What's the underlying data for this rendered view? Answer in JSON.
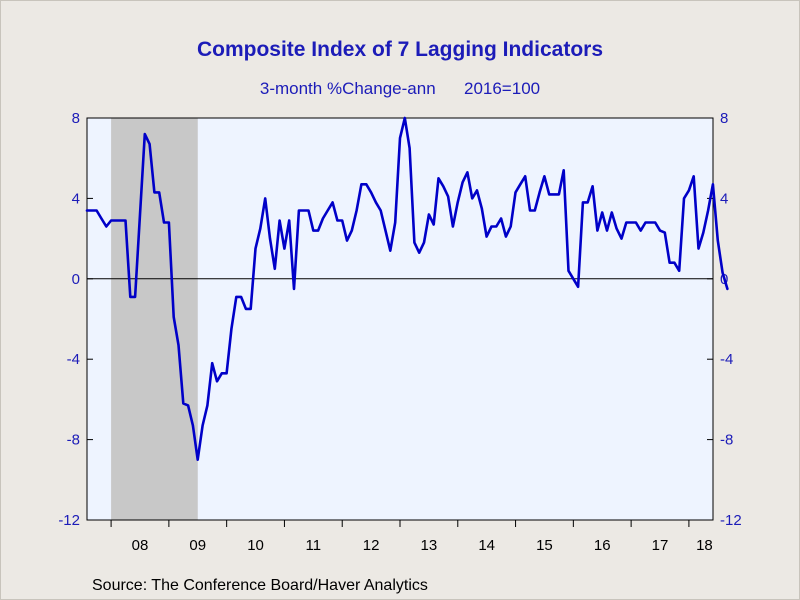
{
  "title": "Composite Index of 7 Lagging Indicators",
  "subtitle": "3-month %Change-ann      2016=100",
  "source": "Source:  The Conference Board/Haver Analytics",
  "colors": {
    "line": "#0000c8",
    "plot_bg": "#eef4ff",
    "recession": "#c8c8c8",
    "text": "#1c1cb8"
  },
  "chart_data": {
    "type": "line",
    "title": "Composite Index of 7 Lagging Indicators",
    "subtitle": "3-month %Change-ann      2016=100",
    "xlim": [
      2007.583,
      2018.417
    ],
    "ylim": [
      -12,
      8
    ],
    "y_ticks": [
      8,
      4,
      0,
      -4,
      -8,
      -12
    ],
    "x_tick_labels": [
      {
        "label": "08",
        "center": 2008.5
      },
      {
        "label": "09",
        "center": 2009.5
      },
      {
        "label": "10",
        "center": 2010.5
      },
      {
        "label": "11",
        "center": 2011.5
      },
      {
        "label": "12",
        "center": 2012.5
      },
      {
        "label": "13",
        "center": 2013.5
      },
      {
        "label": "14",
        "center": 2014.5
      },
      {
        "label": "15",
        "center": 2015.5
      },
      {
        "label": "16",
        "center": 2016.5
      },
      {
        "label": "17",
        "center": 2017.5
      },
      {
        "label": "18",
        "center": 2018.5
      }
    ],
    "recession_shading": {
      "start": 2008.0,
      "end": 2009.5
    },
    "zero_line": true,
    "grid": false,
    "series": [
      {
        "start": 2007.583,
        "step": 0.08333,
        "values": [
          3.4,
          3.4,
          3.4,
          3.0,
          2.6,
          2.9,
          2.9,
          2.9,
          2.9,
          -0.9,
          -0.9,
          3.2,
          7.2,
          6.7,
          4.3,
          4.3,
          2.8,
          2.8,
          -1.9,
          -3.3,
          -6.2,
          -6.3,
          -7.3,
          -9.0,
          -7.3,
          -6.3,
          -4.2,
          -5.1,
          -4.7,
          -4.7,
          -2.5,
          -0.9,
          -0.9,
          -1.5,
          -1.5,
          1.5,
          2.5,
          4.0,
          2.0,
          0.5,
          2.9,
          1.5,
          2.9,
          -0.5,
          3.4,
          3.4,
          3.4,
          2.4,
          2.4,
          3.0,
          3.4,
          3.8,
          2.9,
          2.9,
          1.9,
          2.4,
          3.4,
          4.7,
          4.7,
          4.3,
          3.8,
          3.4,
          2.4,
          1.4,
          2.8,
          7.0,
          8.0,
          6.5,
          1.8,
          1.3,
          1.8,
          3.2,
          2.7,
          5.0,
          4.6,
          4.1,
          2.6,
          3.8,
          4.8,
          5.3,
          4.0,
          4.4,
          3.5,
          2.1,
          2.6,
          2.6,
          3.0,
          2.1,
          2.6,
          4.3,
          4.7,
          5.1,
          3.4,
          3.4,
          4.3,
          5.1,
          4.2,
          4.2,
          4.2,
          5.4,
          0.4,
          0.0,
          -0.4,
          3.8,
          3.8,
          4.6,
          2.4,
          3.3,
          2.4,
          3.3,
          2.5,
          2.0,
          2.8,
          2.8,
          2.8,
          2.4,
          2.8,
          2.8,
          2.8,
          2.4,
          2.3,
          0.8,
          0.8,
          0.4,
          4.0,
          4.4,
          5.1,
          1.5,
          2.3,
          3.4,
          4.7,
          1.9,
          0.3,
          -0.5
        ]
      }
    ]
  }
}
